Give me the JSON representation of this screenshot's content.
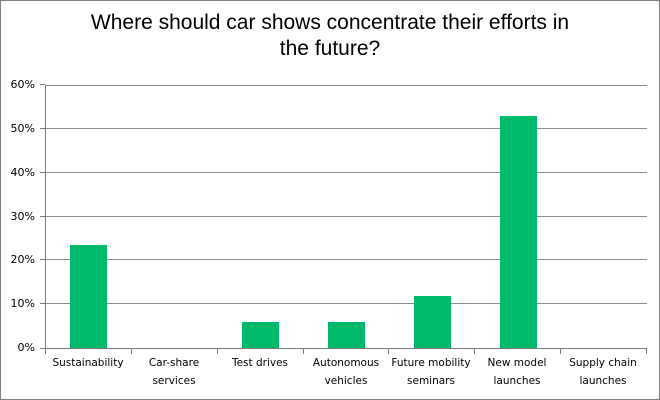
{
  "chart_data": {
    "type": "bar",
    "title": "Where should car shows concentrate their efforts in the future?",
    "categories": [
      "Sustainability",
      "Car-share services",
      "Test drives",
      "Autonomous vehicles",
      "Future mobility seminars",
      "New model launches",
      "Supply chain launches"
    ],
    "category_label_lines": [
      [
        "Sustainability"
      ],
      [
        "Car-share",
        "services"
      ],
      [
        "Test drives"
      ],
      [
        "Autonomous",
        "vehicles"
      ],
      [
        "Future mobility",
        "seminars"
      ],
      [
        "New model",
        "launches"
      ],
      [
        "Supply chain",
        "launches"
      ]
    ],
    "values": [
      23.5,
      0,
      5.9,
      5.9,
      11.8,
      52.9,
      0
    ],
    "value_unit": "%",
    "xlabel": "",
    "ylabel": "",
    "ylim": [
      0,
      60
    ],
    "ytick_step": 10,
    "ytick_labels": [
      "0%",
      "10%",
      "20%",
      "30%",
      "40%",
      "50%",
      "60%"
    ],
    "grid": true,
    "legend_position": "none",
    "colors": {
      "bar": "#00ba6c",
      "gridline": "#8a8a8a",
      "axis": "#7a7a7a",
      "tick": "#7a7a7a",
      "text": "#000000",
      "background": "#ffffff",
      "outer_border": "#7f7f7f"
    }
  }
}
